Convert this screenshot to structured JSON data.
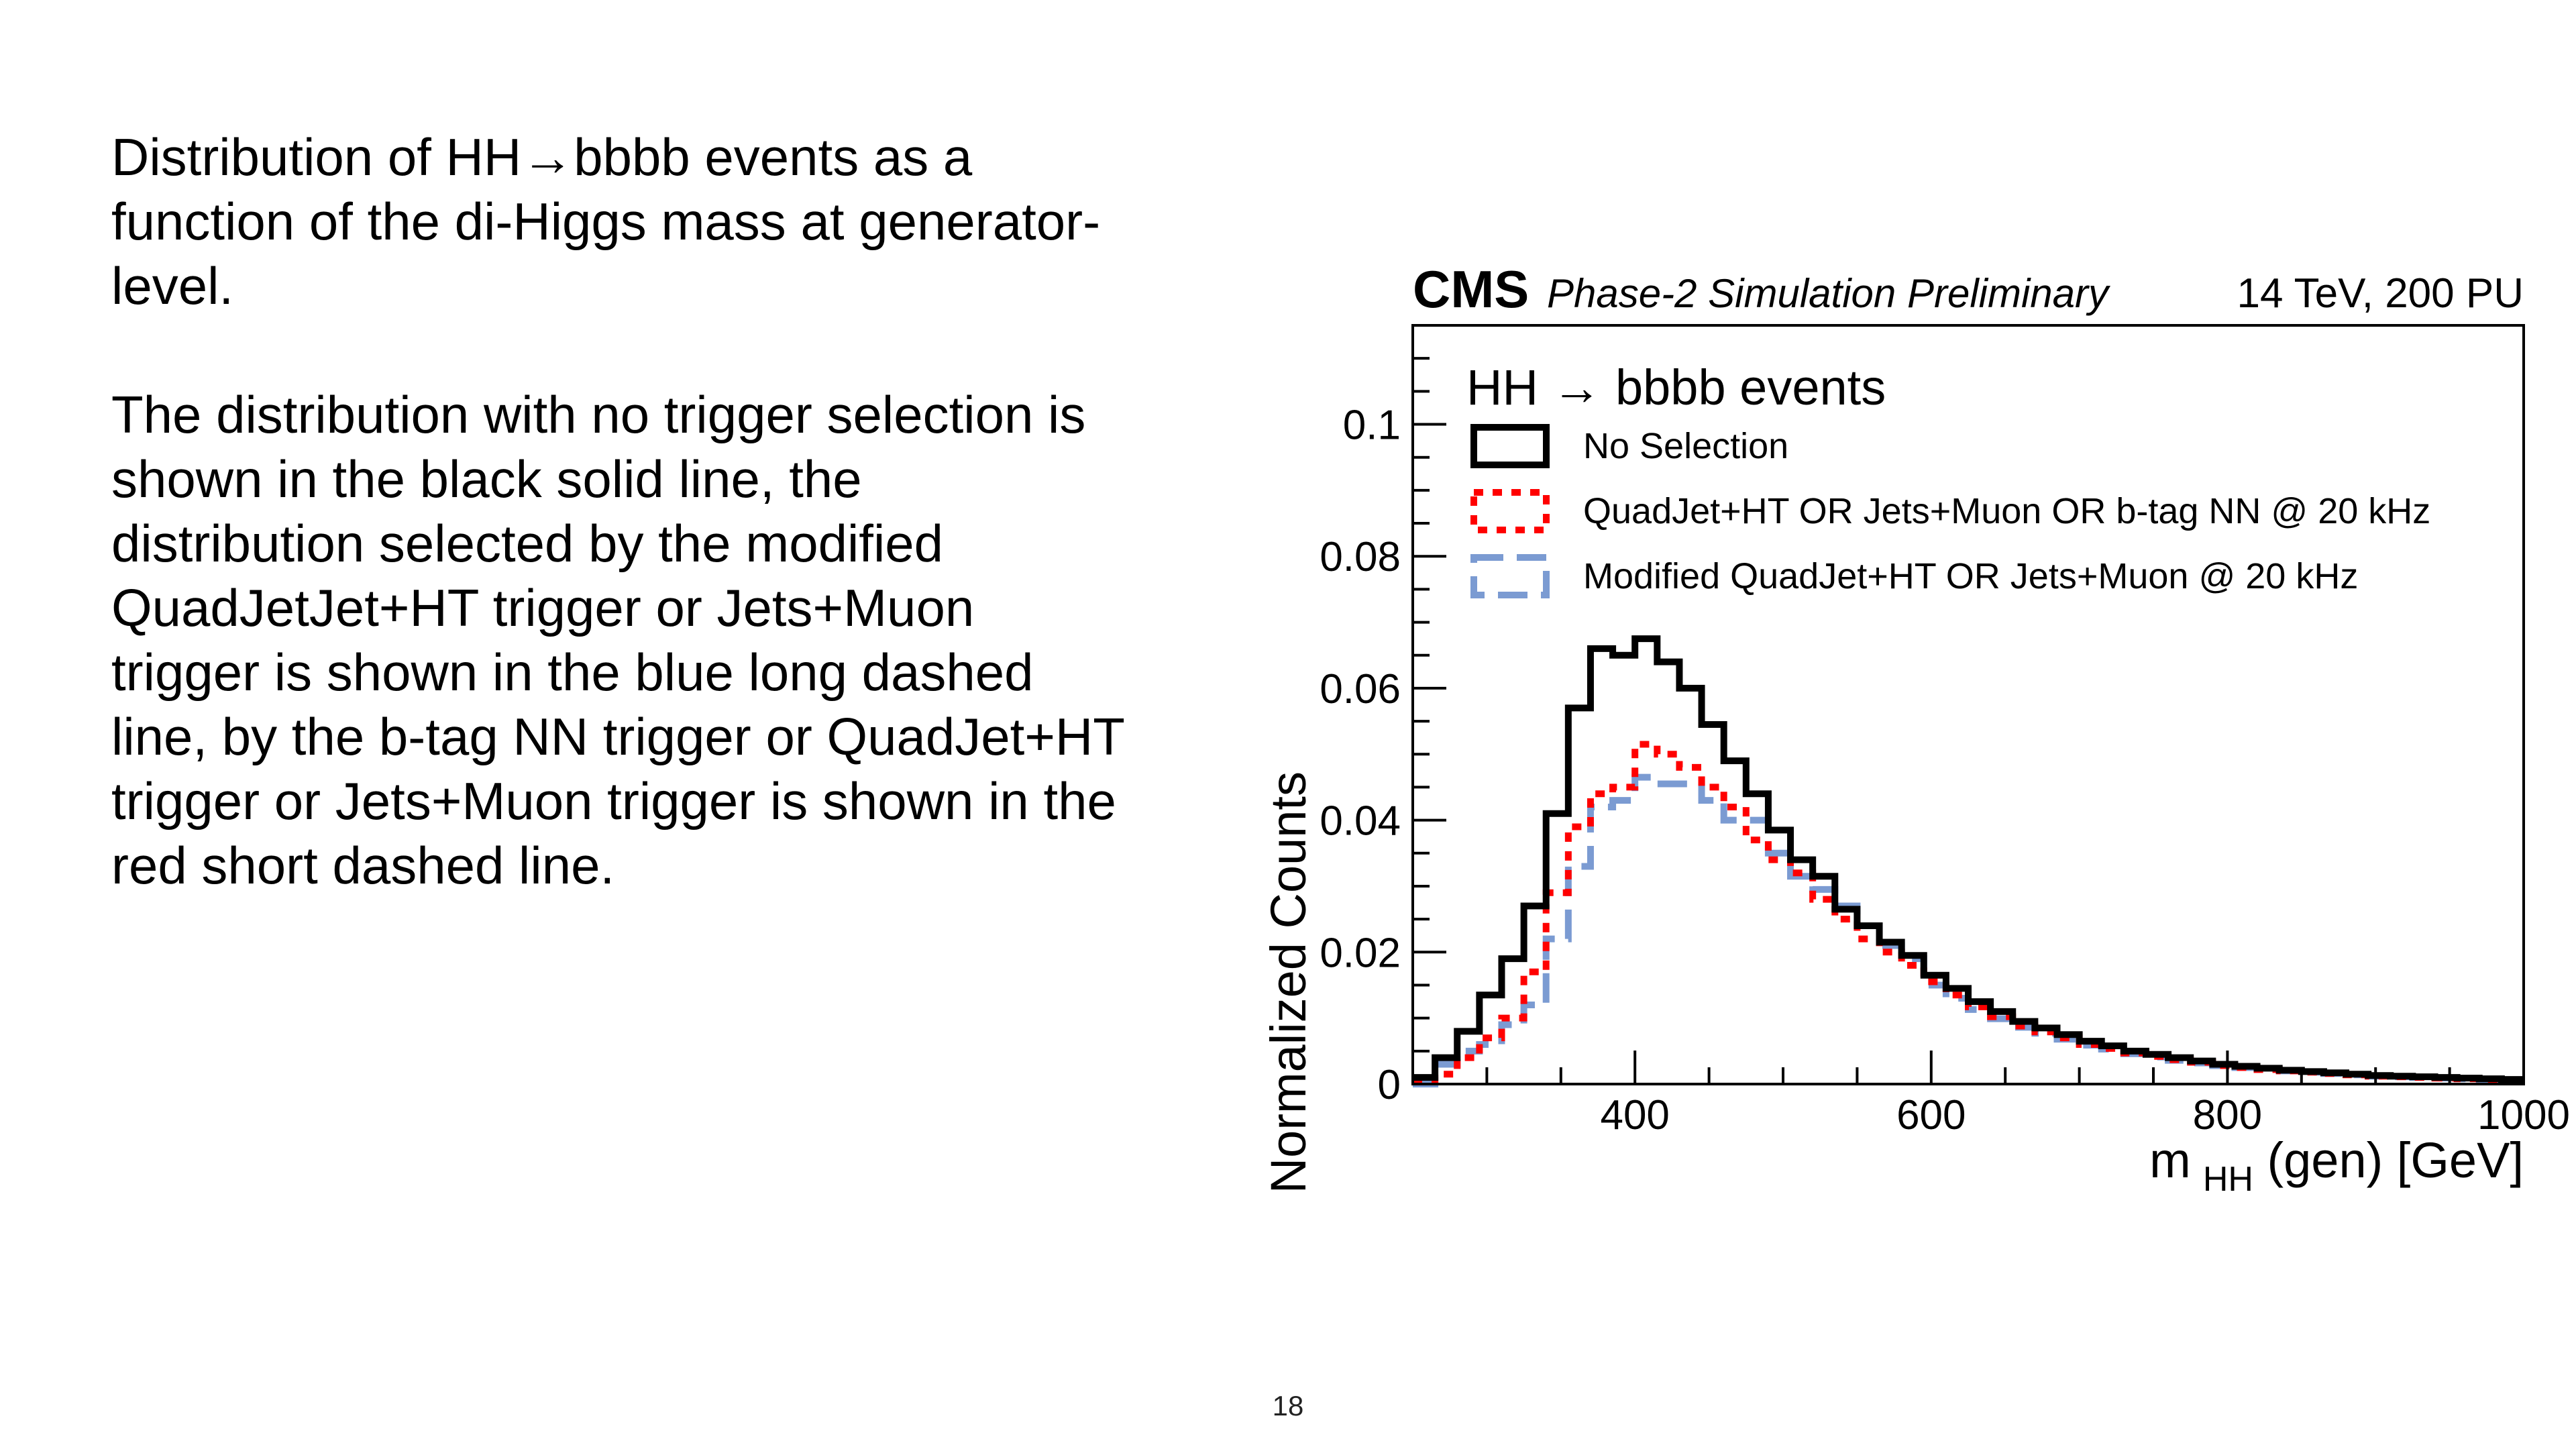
{
  "slide": {
    "paragraphs": [
      [
        "Distribution of HH→bbbb events as a",
        "function of the di-Higgs mass at generator-",
        "level."
      ],
      [
        "The distribution with no trigger selection is",
        "shown in the black solid line, the",
        "distribution selected by the modified",
        "QuadJetJet+HT trigger or Jets+Muon",
        "trigger is shown in the blue long dashed",
        "line, by the b-tag NN trigger or QuadJet+HT",
        "trigger or Jets+Muon trigger is shown in the",
        "red short dashed line."
      ]
    ],
    "page_number": "18"
  },
  "chart_data": {
    "type": "histogram",
    "header": {
      "experiment": "CMS",
      "label": "Phase-2 Simulation Preliminary",
      "conditions": "14 TeV, 200 PU"
    },
    "legend_title": "HH → bbbb events",
    "legend_placement": "top-left",
    "xlabel_main": "m",
    "xlabel_sub": "HH",
    "xlabel_rest": " (gen) [GeV]",
    "ylabel": "Normalized Counts",
    "xlim": [
      250,
      1000
    ],
    "ylim": [
      0,
      0.115
    ],
    "bin_width": 15,
    "x_ticks": [
      400,
      600,
      800,
      1000
    ],
    "x_tick_labels": [
      "400",
      "600",
      "800",
      "1000"
    ],
    "y_ticks": [
      0,
      0.02,
      0.04,
      0.06,
      0.08,
      0.1
    ],
    "y_tick_labels": [
      "0",
      "0.02",
      "0.04",
      "0.06",
      "0.08",
      "0.1"
    ],
    "series": [
      {
        "name": "No Selection",
        "color": "#000000",
        "style": "solid",
        "values": [
          0.001,
          0.004,
          0.008,
          0.0135,
          0.019,
          0.027,
          0.041,
          0.057,
          0.066,
          0.065,
          0.0675,
          0.064,
          0.06,
          0.0545,
          0.049,
          0.044,
          0.0385,
          0.034,
          0.0315,
          0.0265,
          0.024,
          0.0215,
          0.0195,
          0.0165,
          0.0145,
          0.0125,
          0.011,
          0.0095,
          0.0085,
          0.0075,
          0.0065,
          0.0058,
          0.005,
          0.0045,
          0.004,
          0.0035,
          0.003,
          0.0027,
          0.0024,
          0.0021,
          0.0019,
          0.0017,
          0.0015,
          0.0013,
          0.0012,
          0.0011,
          0.001,
          0.0009,
          0.0008,
          0.0007
        ]
      },
      {
        "name": "QuadJet+HT OR Jets+Muon OR b-tag NN @ 20 kHz",
        "color": "#ff0000",
        "style": "short-dash",
        "values": [
          0.0005,
          0.0015,
          0.004,
          0.007,
          0.01,
          0.017,
          0.029,
          0.039,
          0.044,
          0.045,
          0.0515,
          0.05,
          0.048,
          0.045,
          0.042,
          0.037,
          0.034,
          0.032,
          0.028,
          0.025,
          0.022,
          0.02,
          0.018,
          0.0155,
          0.0135,
          0.0117,
          0.0102,
          0.0088,
          0.0079,
          0.007,
          0.006,
          0.0054,
          0.0047,
          0.0042,
          0.0037,
          0.0033,
          0.0028,
          0.0025,
          0.0022,
          0.002,
          0.0018,
          0.0016,
          0.0014,
          0.0012,
          0.0011,
          0.001,
          0.0009,
          0.0008,
          0.0007,
          0.0006
        ]
      },
      {
        "name": "Modified QuadJet+HT OR Jets+Muon @ 20 kHz",
        "color": "#7b9bd2",
        "style": "long-dash",
        "values": [
          0.0,
          0.003,
          0.005,
          0.006,
          0.009,
          0.012,
          0.022,
          0.033,
          0.042,
          0.043,
          0.0465,
          0.0455,
          0.0455,
          0.043,
          0.04,
          0.04,
          0.035,
          0.0315,
          0.0295,
          0.027,
          0.024,
          0.021,
          0.019,
          0.015,
          0.013,
          0.0113,
          0.0099,
          0.0086,
          0.0077,
          0.0068,
          0.0059,
          0.0053,
          0.0046,
          0.0041,
          0.0036,
          0.0032,
          0.0028,
          0.0025,
          0.0022,
          0.002,
          0.0018,
          0.0016,
          0.0014,
          0.0012,
          0.0011,
          0.001,
          0.0009,
          0.0008,
          0.0007,
          0.0006
        ]
      }
    ]
  }
}
